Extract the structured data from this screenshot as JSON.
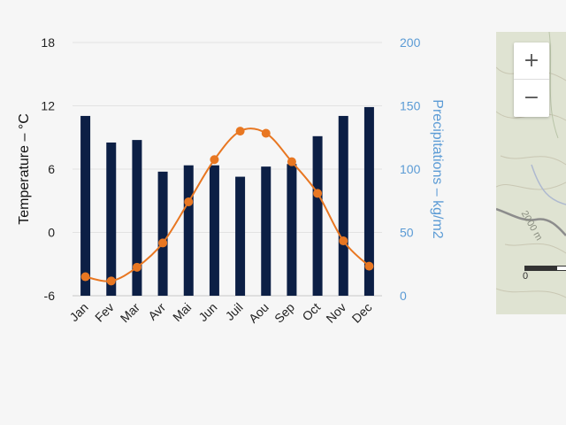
{
  "chart_data": {
    "type": "bar+line",
    "categories": [
      "Jan",
      "Fev",
      "Mar",
      "Avr",
      "Mai",
      "Jun",
      "Juil",
      "Aou",
      "Sep",
      "Oct",
      "Nov",
      "Dec"
    ],
    "series": [
      {
        "name": "Precipitations",
        "type": "bar",
        "axis": "right",
        "color": "#0c1f45",
        "values": [
          142,
          121,
          123,
          98,
          103,
          103,
          94,
          102,
          104,
          126,
          142,
          149
        ]
      },
      {
        "name": "Temperature",
        "type": "line",
        "axis": "left",
        "color": "#e87722",
        "values": [
          -4.2,
          -4.6,
          -3.3,
          -1.0,
          2.9,
          6.9,
          9.6,
          9.4,
          6.7,
          3.7,
          -0.8,
          -3.2
        ]
      }
    ],
    "left_axis": {
      "title": "Temperature – °C",
      "ticks": [
        "-6",
        "0",
        "6",
        "12",
        "18"
      ],
      "range": [
        -6,
        18
      ]
    },
    "right_axis": {
      "title": "Precipitations – kg/m2",
      "ticks": [
        "0",
        "50",
        "100",
        "150",
        "200"
      ],
      "range": [
        0,
        200
      ]
    },
    "grid": true
  },
  "map": {
    "zoom_in_label": "+",
    "zoom_out_label": "−",
    "contour_label": "2000 m",
    "scale_label": "0"
  }
}
